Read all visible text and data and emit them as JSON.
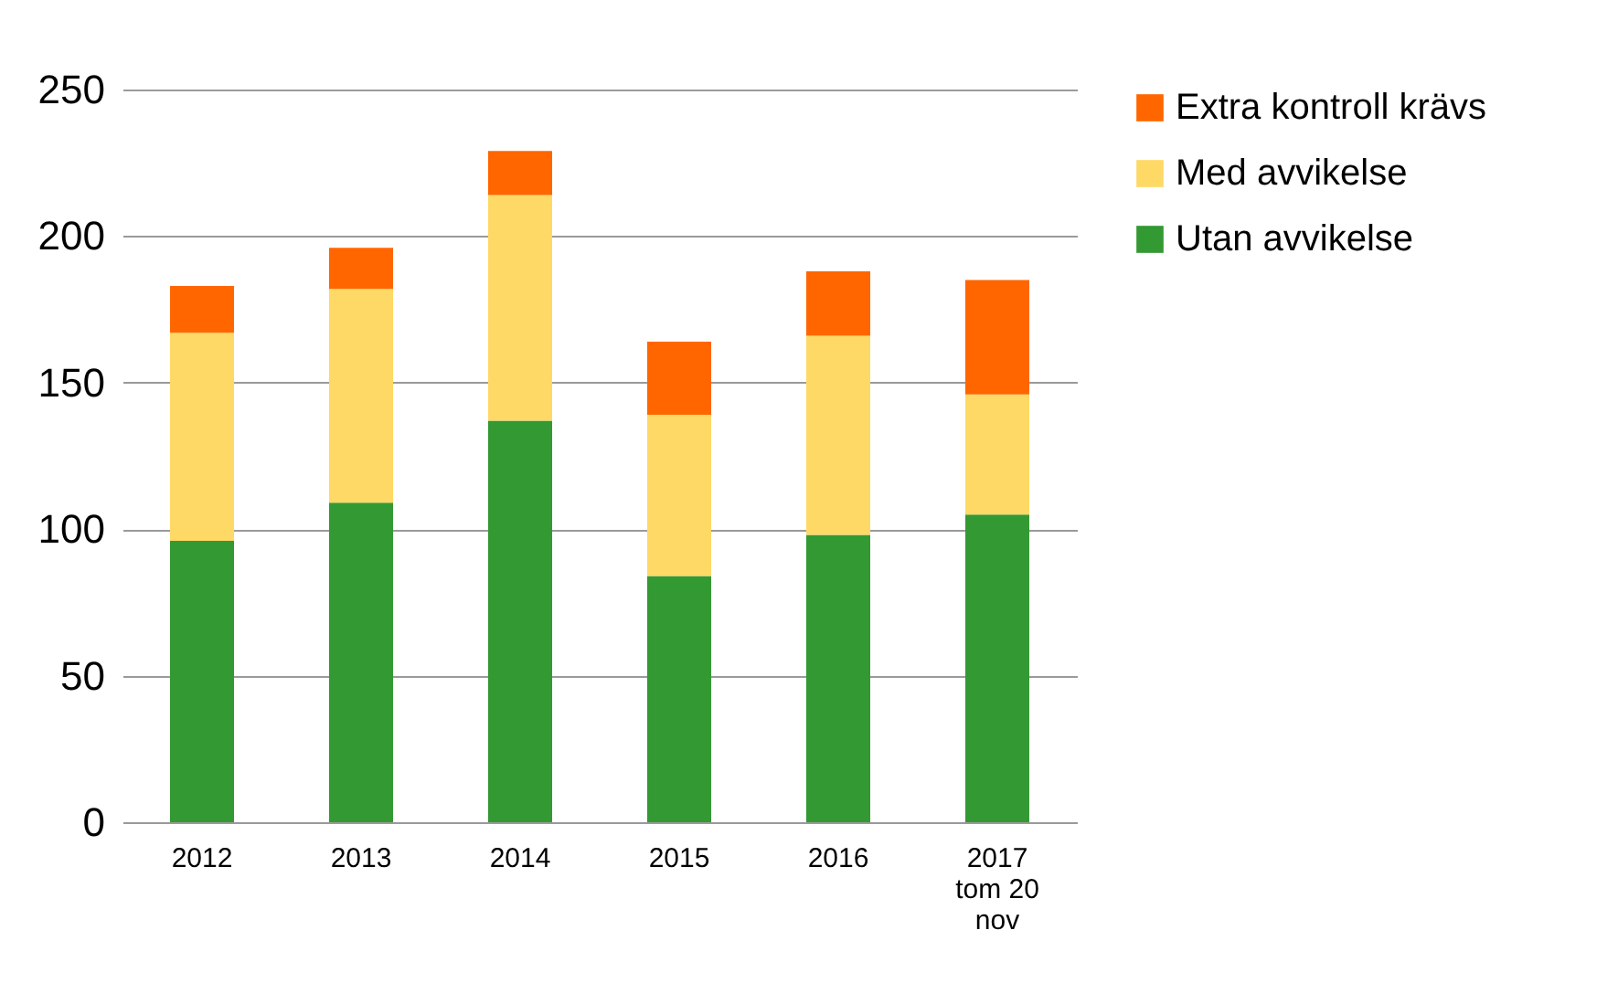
{
  "chart_data": {
    "type": "bar",
    "stacked": true,
    "categories": [
      "2012",
      "2013",
      "2014",
      "2015",
      "2016",
      "2017 tom 20 nov"
    ],
    "series": [
      {
        "name": "Utan avvikelse",
        "color": "#339933",
        "values": [
          96,
          109,
          137,
          84,
          98,
          105
        ]
      },
      {
        "name": "Med avvikelse",
        "color": "#ffd966",
        "values": [
          71,
          73,
          77,
          55,
          68,
          41
        ]
      },
      {
        "name": "Extra kontroll krävs",
        "color": "#ff6600",
        "values": [
          16,
          14,
          15,
          25,
          22,
          39
        ]
      }
    ],
    "ylim": [
      0,
      250
    ],
    "yticks": [
      0,
      50,
      100,
      150,
      200,
      250
    ],
    "grid": "y",
    "legend": "right"
  }
}
